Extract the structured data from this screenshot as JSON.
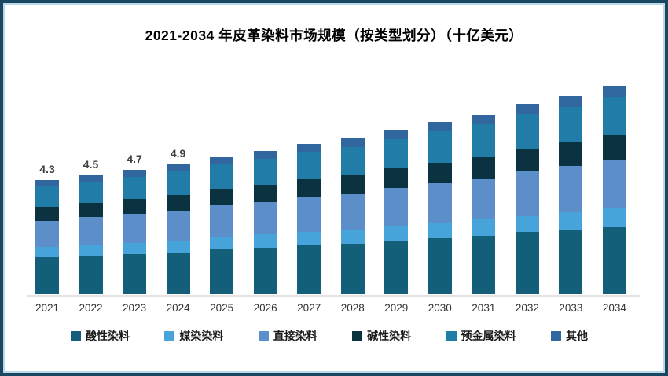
{
  "page": {
    "frame_border_color": "#1a4660",
    "frame_inner_line_color": "#b9d9ea",
    "background": "#ffffff"
  },
  "chart_data": {
    "type": "bar",
    "stacked": true,
    "title": "2021-2034 年皮革染料市场规模（按类型划分）（十亿美元）",
    "unit": "十亿美元",
    "grid": false,
    "legend_position": "bottom",
    "axis_line_color": "#e3e3e3",
    "value_label_color": "#404040",
    "category_label_color": "#333333",
    "categories": [
      "2021",
      "2022",
      "2023",
      "2024",
      "2025",
      "2026",
      "2027",
      "2028",
      "2029",
      "2030",
      "2031",
      "2032",
      "2033",
      "2034"
    ],
    "totals": [
      4.3,
      4.5,
      4.7,
      4.9,
      5.2,
      5.4,
      5.7,
      5.9,
      6.2,
      6.5,
      6.8,
      7.2,
      7.5,
      7.9
    ],
    "total_labels": [
      "4.3",
      "4.5",
      "4.7",
      "4.9",
      "",
      "",
      "",
      "",
      "",
      "",
      "",
      "",
      "",
      ""
    ],
    "ylim": [
      0,
      8.4
    ],
    "series": [
      {
        "name": "酸性染料",
        "color": "#135e79",
        "values": [
          1.4,
          1.46,
          1.53,
          1.59,
          1.69,
          1.76,
          1.85,
          1.92,
          2.02,
          2.11,
          2.21,
          2.34,
          2.44,
          2.57
        ]
      },
      {
        "name": "媒染染料",
        "color": "#46a4db",
        "values": [
          0.39,
          0.41,
          0.42,
          0.44,
          0.47,
          0.49,
          0.51,
          0.53,
          0.56,
          0.59,
          0.61,
          0.65,
          0.68,
          0.71
        ]
      },
      {
        "name": "直接染料",
        "color": "#5c8ec9",
        "values": [
          0.99,
          1.04,
          1.08,
          1.13,
          1.2,
          1.24,
          1.31,
          1.36,
          1.43,
          1.5,
          1.56,
          1.66,
          1.73,
          1.82
        ]
      },
      {
        "name": "碱性染料",
        "color": "#0b3240",
        "values": [
          0.52,
          0.54,
          0.56,
          0.59,
          0.62,
          0.65,
          0.68,
          0.71,
          0.74,
          0.78,
          0.82,
          0.86,
          0.9,
          0.95
        ]
      },
      {
        "name": "预金属染料",
        "color": "#217ca8",
        "values": [
          0.77,
          0.81,
          0.85,
          0.88,
          0.94,
          0.97,
          1.03,
          1.06,
          1.12,
          1.17,
          1.22,
          1.3,
          1.35,
          1.42
        ]
      },
      {
        "name": "其他",
        "color": "#32669f",
        "values": [
          0.24,
          0.25,
          0.26,
          0.27,
          0.29,
          0.3,
          0.31,
          0.32,
          0.34,
          0.36,
          0.37,
          0.4,
          0.41,
          0.43
        ]
      }
    ]
  }
}
